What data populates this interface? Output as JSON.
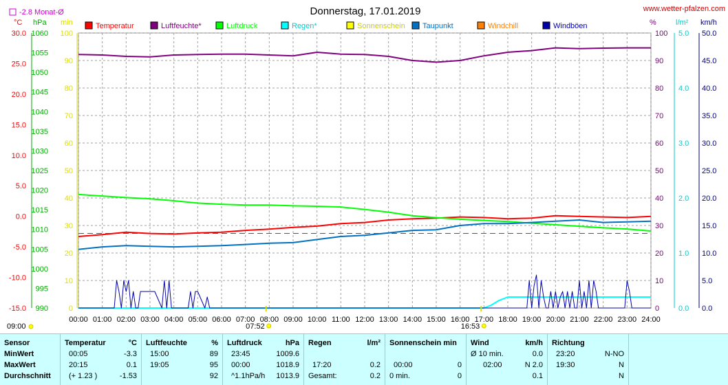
{
  "header": {
    "title": "Donnerstag, 17.01.2019",
    "site": "www.wetter-pfalzen.com",
    "monthly_avg_label": "-2.8 Monat-Ø",
    "colors": {
      "title": "#000000",
      "site": "#cc0000"
    }
  },
  "axes_units": {
    "temp": "°C",
    "pressure": "hPa",
    "minutes": "min",
    "humidity": "%",
    "rain": "l/m²",
    "wind": "km/h"
  },
  "legend": [
    {
      "label": "Temperatur",
      "color": "#ff0000"
    },
    {
      "label": "Luftfeuchte*",
      "color": "#800080"
    },
    {
      "label": "Luftdruck",
      "color": "#00ff00"
    },
    {
      "label": "Regen*",
      "color": "#00ffff"
    },
    {
      "label": "Sonnenschein",
      "color": "#ffff00"
    },
    {
      "label": "Taupunkt",
      "color": "#0070c0"
    },
    {
      "label": "Windchill",
      "color": "#ff8000"
    },
    {
      "label": "Windböen",
      "color": "#0000aa"
    }
  ],
  "sun": {
    "rise": "07:52",
    "set": "16:53"
  },
  "corner_time": "09:00",
  "chart_data": {
    "type": "line",
    "title": "Donnerstag, 17.01.2019",
    "x_ticks": [
      "00:00",
      "01:00",
      "02:00",
      "03:00",
      "04:00",
      "05:00",
      "06:00",
      "07:00",
      "08:00",
      "09:00",
      "10:00",
      "11:00",
      "12:00",
      "13:00",
      "14:00",
      "15:00",
      "16:00",
      "17:00",
      "18:00",
      "19:00",
      "20:00",
      "21:00",
      "22:00",
      "23:00",
      "24:00"
    ],
    "xlim_hours": [
      0,
      24
    ],
    "axes": {
      "temp": {
        "unit": "°C",
        "ticks": [
          "30.0",
          "25.0",
          "20.0",
          "15.0",
          "10.0",
          "5.0",
          "0.0",
          "-5.0",
          "-10.0",
          "-15.0"
        ],
        "lim": [
          -15,
          30
        ],
        "color": "#ff0000"
      },
      "pressure": {
        "unit": "hPa",
        "ticks": [
          "1060",
          "1055",
          "1050",
          "1045",
          "1040",
          "1035",
          "1030",
          "1025",
          "1020",
          "1015",
          "1010",
          "1005",
          "1000",
          "995",
          "990"
        ],
        "lim": [
          990,
          1060
        ],
        "color": "#00aa00"
      },
      "minutes": {
        "unit": "min",
        "ticks": [
          "100",
          "90",
          "80",
          "70",
          "60",
          "50",
          "40",
          "30",
          "20",
          "10",
          "0"
        ],
        "lim": [
          0,
          100
        ],
        "color": "#ffff00"
      },
      "humidity": {
        "unit": "%",
        "ticks": [
          "100",
          "90",
          "80",
          "70",
          "60",
          "50",
          "40",
          "30",
          "20",
          "10",
          "0"
        ],
        "lim": [
          0,
          100
        ],
        "color": "#800080"
      },
      "rain": {
        "unit": "l/m²",
        "ticks": [
          "5.0",
          "4.0",
          "3.0",
          "2.0",
          "1.0",
          "0.0"
        ],
        "lim": [
          0,
          5
        ],
        "color": "#00cccc"
      },
      "wind": {
        "unit": "km/h",
        "ticks": [
          "50.0",
          "45.0",
          "40.0",
          "35.0",
          "30.0",
          "25.0",
          "20.0",
          "15.0",
          "10.0",
          "5.0",
          "0.0"
        ],
        "lim": [
          0,
          50
        ],
        "color": "#000080"
      }
    },
    "monthly_avg_temp": -2.8,
    "series": [
      {
        "name": "Temperatur",
        "axis": "temp",
        "color": "#ff0000",
        "x": [
          0,
          1,
          2,
          3,
          4,
          5,
          6,
          7,
          8,
          9,
          10,
          11,
          12,
          13,
          14,
          15,
          16,
          17,
          18,
          19,
          20,
          21,
          22,
          23,
          24
        ],
        "y": [
          -3.3,
          -3.0,
          -2.6,
          -2.8,
          -2.9,
          -2.7,
          -2.6,
          -2.3,
          -2.1,
          -1.8,
          -1.6,
          -1.2,
          -1.0,
          -0.6,
          -0.4,
          -0.3,
          -0.1,
          -0.2,
          -0.4,
          -0.3,
          0.1,
          0.0,
          -0.1,
          -0.2,
          0.0
        ]
      },
      {
        "name": "Luftfeuchte*",
        "axis": "humidity",
        "color": "#800080",
        "x": [
          0,
          1,
          2,
          3,
          4,
          5,
          6,
          7,
          8,
          9,
          10,
          11,
          12,
          13,
          14,
          15,
          16,
          17,
          18,
          19,
          20,
          21,
          22,
          23,
          24
        ],
        "y": [
          92.2,
          92.0,
          91.5,
          91.3,
          92.0,
          92.2,
          92.3,
          92.3,
          92.0,
          91.7,
          93.0,
          92.3,
          92.2,
          91.5,
          90.0,
          89.4,
          90.0,
          91.7,
          93.0,
          93.6,
          94.6,
          94.3,
          94.5,
          94.6,
          94.6
        ]
      },
      {
        "name": "Luftdruck",
        "axis": "pressure",
        "color": "#00ff00",
        "x": [
          0,
          1,
          2,
          3,
          4,
          5,
          6,
          7,
          8,
          9,
          10,
          11,
          12,
          13,
          14,
          15,
          16,
          17,
          18,
          19,
          20,
          21,
          22,
          23,
          24
        ],
        "y": [
          1018.9,
          1018.5,
          1018.1,
          1017.8,
          1017.3,
          1016.7,
          1016.4,
          1016.2,
          1016.2,
          1016.0,
          1015.9,
          1015.7,
          1015.1,
          1014.4,
          1013.5,
          1013.0,
          1012.6,
          1012.3,
          1012.0,
          1011.6,
          1011.2,
          1010.8,
          1010.4,
          1010.1,
          1009.6
        ]
      },
      {
        "name": "Taupunkt",
        "axis": "temp",
        "color": "#0070c0",
        "x": [
          0,
          1,
          2,
          3,
          4,
          5,
          6,
          7,
          8,
          9,
          10,
          11,
          12,
          13,
          14,
          15,
          16,
          17,
          18,
          19,
          20,
          21,
          22,
          23,
          24
        ],
        "y": [
          -5.4,
          -5.0,
          -4.8,
          -4.9,
          -5.0,
          -4.9,
          -4.8,
          -4.6,
          -4.4,
          -4.3,
          -3.8,
          -3.3,
          -3.1,
          -2.7,
          -2.3,
          -2.2,
          -1.5,
          -1.2,
          -1.2,
          -1.0,
          -0.8,
          -0.6,
          -1.0,
          -0.9,
          -0.8
        ]
      },
      {
        "name": "Regen*",
        "axis": "rain",
        "color": "#00ffff",
        "x": [
          0,
          17,
          17.3,
          17.6,
          18,
          19,
          20,
          21,
          22,
          23,
          24
        ],
        "y": [
          0,
          0,
          0.05,
          0.13,
          0.2,
          0.2,
          0.2,
          0.2,
          0.2,
          0.2,
          0.2
        ]
      },
      {
        "name": "Windböen",
        "axis": "wind",
        "color": "#0000aa",
        "x": [
          0,
          1.5,
          1.6,
          1.7,
          1.8,
          1.9,
          2.0,
          2.1,
          2.2,
          2.3,
          2.4,
          2.5,
          2.6,
          2.7,
          3.0,
          3.2,
          3.5,
          3.6,
          3.7,
          3.8,
          3.9,
          4.6,
          4.7,
          4.8,
          4.9,
          5.0,
          5.3,
          5.4,
          5.5,
          18.8,
          18.9,
          19.0,
          19.1,
          19.2,
          19.3,
          19.4,
          19.5,
          19.6,
          19.7,
          19.8,
          19.9,
          20.0,
          20.1,
          20.2,
          20.3,
          20.4,
          20.5,
          20.6,
          20.7,
          20.8,
          20.9,
          21.0,
          21.1,
          21.2,
          21.3,
          21.4,
          21.5,
          21.6,
          21.7,
          21.8,
          21.9,
          22.0,
          22.5,
          22.9,
          23.0,
          23.1,
          23.2,
          23.3,
          24
        ],
        "y": [
          0,
          0,
          5,
          3,
          0,
          5,
          3,
          5,
          0,
          3,
          0,
          0,
          3,
          3,
          3,
          3,
          0,
          5,
          0,
          5,
          0,
          0,
          3,
          0,
          3,
          3,
          0,
          2,
          0,
          0,
          5,
          0,
          4,
          6,
          0,
          5,
          2,
          0,
          0,
          3,
          0,
          3,
          0,
          2,
          3,
          0,
          3,
          0,
          3,
          0,
          0,
          5,
          0,
          3,
          0,
          5,
          0,
          5,
          3,
          0,
          0,
          0,
          0,
          0,
          5,
          3,
          0,
          0,
          0
        ]
      }
    ]
  },
  "stats": {
    "headers": [
      "Sensor",
      "Temperatur",
      "°C",
      "Luftfeuchte",
      "%",
      "Luftdruck",
      "hPa",
      "Regen",
      "l/m²",
      "Sonnenschein min",
      "Wind",
      "km/h",
      "Richtung"
    ],
    "rows": [
      {
        "label": "MinWert",
        "t_time": "00:05",
        "t_val": "-3.3",
        "h_time": "15:00",
        "h_val": "89",
        "p_time": "23:45",
        "p_val": "1009.6",
        "r_time": "",
        "r_val": "",
        "s_time": "",
        "s_val": "",
        "w_time": "Ø 10 min.",
        "w_val": "0.0",
        "d_time": "23:20",
        "d_val": "N-NO"
      },
      {
        "label": "MaxWert",
        "t_time": "20:15",
        "t_val": "0.1",
        "h_time": "19:05",
        "h_val": "95",
        "p_time": "00:00",
        "p_val": "1018.9",
        "r_time": "17:20",
        "r_val": "0.2",
        "s_time": "00:00",
        "s_val": "0",
        "w_time": "02:00",
        "w_val": "N 2.0",
        "d_time": "19:30",
        "d_val": "N"
      },
      {
        "label": "Durchschnitt",
        "t_time": "(+ 1.23 )",
        "t_val": "-1.53",
        "h_time": "",
        "h_val": "92",
        "p_time": "^1.1hPa/h",
        "p_val": "1013.9",
        "r_time": "Gesamt:",
        "r_val": "0.2",
        "s_time": "0 min.",
        "s_val": "0",
        "w_time": "",
        "w_val": "0.1",
        "d_time": "",
        "d_val": "N"
      }
    ]
  }
}
